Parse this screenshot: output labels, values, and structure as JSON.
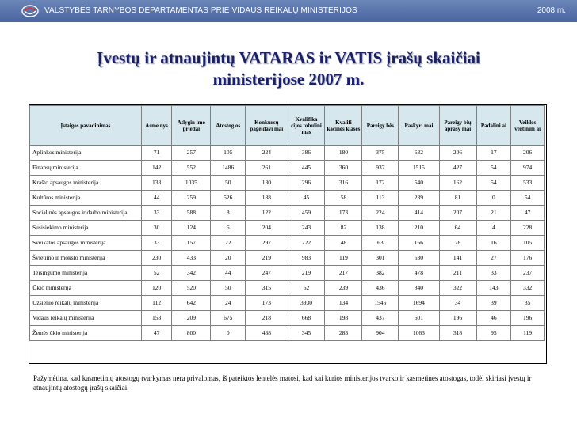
{
  "header": {
    "org": "VALSTYBĖS TARNYBOS DEPARTAMENTAS  PRIE VIDAUS REIKALŲ MINISTERIJOS",
    "year": "2008 m."
  },
  "title": {
    "line1": "Įvestų ir atnaujintų VATARAS ir VATIS įrašų skaičiai",
    "line2": "ministerijose 2007 m."
  },
  "table": {
    "columns": [
      "Įstaigos pavadinimas",
      "Asme nys",
      "Atlygin imo priedai",
      "Atostog os",
      "Konkursų pageidavi mai",
      "Kvalifika cijos tobulini mas",
      "Kvalifi kacinės klasės",
      "Pareigy bės",
      "Paskyri mai",
      "Pareigy bių aprašy mai",
      "Padalini ai",
      "Veiklos vertinim ai"
    ],
    "rows": [
      {
        "name": "Aplinkos ministerija",
        "values": [
          "71",
          "257",
          "105",
          "224",
          "386",
          "180",
          "375",
          "632",
          "206",
          "17",
          "206"
        ]
      },
      {
        "name": "Finansų ministerija",
        "values": [
          "142",
          "552",
          "1486",
          "261",
          "445",
          "360",
          "937",
          "1515",
          "427",
          "54",
          "974"
        ]
      },
      {
        "name": "Krašto apsaugos ministerija",
        "values": [
          "133",
          "1035",
          "50",
          "130",
          "296",
          "316",
          "172",
          "540",
          "162",
          "54",
          "533"
        ]
      },
      {
        "name": "Kultūros ministerija",
        "values": [
          "44",
          "259",
          "526",
          "188",
          "45",
          "58",
          "113",
          "239",
          "81",
          "0",
          "54"
        ]
      },
      {
        "name": "Socialinės apsaugos ir darbo ministerija",
        "values": [
          "33",
          "588",
          "8",
          "122",
          "459",
          "173",
          "224",
          "414",
          "207",
          "21",
          "47"
        ]
      },
      {
        "name": "Susisiekimo ministerija",
        "values": [
          "30",
          "124",
          "6",
          "204",
          "243",
          "82",
          "138",
          "210",
          "64",
          "4",
          "228"
        ]
      },
      {
        "name": "Sveikatos apsaugos ministerija",
        "values": [
          "33",
          "157",
          "22",
          "297",
          "222",
          "48",
          "63",
          "166",
          "78",
          "16",
          "105"
        ]
      },
      {
        "name": "Švietimo ir mokslo ministerija",
        "values": [
          "230",
          "433",
          "20",
          "219",
          "983",
          "119",
          "301",
          "530",
          "141",
          "27",
          "176"
        ]
      },
      {
        "name": "Teisingumo ministerija",
        "values": [
          "52",
          "342",
          "44",
          "247",
          "219",
          "217",
          "382",
          "478",
          "211",
          "33",
          "237"
        ]
      },
      {
        "name": "Ūkio ministerija",
        "values": [
          "120",
          "520",
          "50",
          "315",
          "62",
          "239",
          "436",
          "840",
          "322",
          "143",
          "332"
        ]
      },
      {
        "name": "Užsienio reikalų ministerija",
        "values": [
          "112",
          "642",
          "24",
          "173",
          "3930",
          "134",
          "1545",
          "1694",
          "34",
          "39",
          "35"
        ]
      },
      {
        "name": "Vidaus reikalų ministerija",
        "values": [
          "153",
          "209",
          "675",
          "218",
          "668",
          "198",
          "437",
          "601",
          "196",
          "46",
          "196"
        ]
      },
      {
        "name": "Žemės ūkio ministerija",
        "values": [
          "47",
          "800",
          "0",
          "438",
          "345",
          "283",
          "904",
          "1063",
          "318",
          "95",
          "119"
        ]
      }
    ]
  },
  "footnote": "Pažymėtina, kad kasmetinių atostogų tvarkymas nėra privalomas, iš pateiktos lentelės matosi, kad kai kurios ministerijos tvarko ir kasmetines atostogas, todėl skiriasi įvestų ir atnaujintų atostogų įrašų skaičiai.",
  "icons": {
    "logo": "ministry-logo-icon"
  },
  "colors": {
    "header_bg": "#5672aa",
    "title": "#1a1f66",
    "table_header_bg": "#d7e7ee"
  }
}
